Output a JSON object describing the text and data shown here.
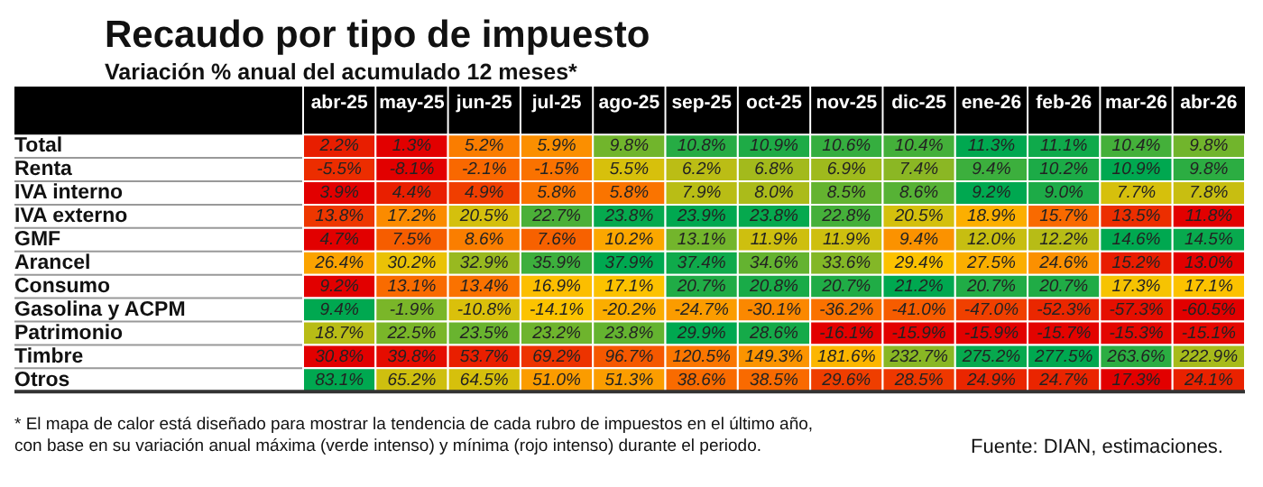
{
  "chart_data": {
    "type": "heatmap",
    "title": "Recaudo por tipo de impuesto",
    "subtitle": "Variación % anual del acumulado 12 meses*",
    "categories": [
      "abr-25",
      "may-25",
      "jun-25",
      "jul-25",
      "ago-25",
      "sep-25",
      "oct-25",
      "nov-25",
      "dic-25",
      "ene-26",
      "feb-26",
      "mar-26",
      "abr-26"
    ],
    "y_categories": [
      "Total",
      "Renta",
      "IVA interno",
      "IVA externo",
      "GMF",
      "Arancel",
      "Consumo",
      "Gasolina y ACPM",
      "Patrimonio",
      "Timbre",
      "Otros"
    ],
    "cells": [
      [
        2.2,
        1.3,
        5.2,
        5.9,
        9.8,
        10.8,
        10.9,
        10.6,
        10.4,
        11.3,
        11.1,
        10.4,
        9.8
      ],
      [
        -5.5,
        -8.1,
        -2.1,
        -1.5,
        5.5,
        6.2,
        6.8,
        6.9,
        7.4,
        9.4,
        10.2,
        10.9,
        9.8
      ],
      [
        3.9,
        4.4,
        4.9,
        5.8,
        5.8,
        7.9,
        8.0,
        8.5,
        8.6,
        9.2,
        9.0,
        7.7,
        7.8
      ],
      [
        13.8,
        17.2,
        20.5,
        22.7,
        23.8,
        23.9,
        23.8,
        22.8,
        20.5,
        18.9,
        15.7,
        13.5,
        11.8
      ],
      [
        4.7,
        7.5,
        8.6,
        7.6,
        10.2,
        13.1,
        11.9,
        11.9,
        9.4,
        12.0,
        12.2,
        14.6,
        14.5
      ],
      [
        26.4,
        30.2,
        32.9,
        35.9,
        37.9,
        37.4,
        34.6,
        33.6,
        29.4,
        27.5,
        24.6,
        15.2,
        13.0
      ],
      [
        9.2,
        13.1,
        13.4,
        16.9,
        17.1,
        20.7,
        20.8,
        20.7,
        21.2,
        20.7,
        20.7,
        17.3,
        17.1
      ],
      [
        9.4,
        -1.9,
        -10.8,
        -14.1,
        -20.2,
        -24.7,
        -30.1,
        -36.2,
        -41.0,
        -47.0,
        -52.3,
        -57.3,
        -60.5
      ],
      [
        18.7,
        22.5,
        23.5,
        23.2,
        23.8,
        29.9,
        28.6,
        -16.1,
        -15.9,
        -15.9,
        -15.7,
        -15.3,
        -15.1
      ],
      [
        30.8,
        39.8,
        53.7,
        69.2,
        96.7,
        120.5,
        149.3,
        181.6,
        232.7,
        275.2,
        277.5,
        263.6,
        222.9
      ],
      [
        83.1,
        65.2,
        64.5,
        51.0,
        51.3,
        38.6,
        38.5,
        29.6,
        28.5,
        24.9,
        24.7,
        17.3,
        24.1
      ]
    ],
    "cell_labels": [
      [
        "2.2%",
        "1.3%",
        "5.2%",
        "5.9%",
        "9.8%",
        "10.8%",
        "10.9%",
        "10.6%",
        "10.4%",
        "11.3%",
        "11.1%",
        "10.4%",
        "9.8%"
      ],
      [
        "-5.5%",
        "-8.1%",
        "-2.1%",
        "-1.5%",
        "5.5%",
        "6.2%",
        "6.8%",
        "6.9%",
        "7.4%",
        "9.4%",
        "10.2%",
        "10.9%",
        "9.8%"
      ],
      [
        "3.9%",
        "4.4%",
        "4.9%",
        "5.8%",
        "5.8%",
        "7.9%",
        "8.0%",
        "8.5%",
        "8.6%",
        "9.2%",
        "9.0%",
        "7.7%",
        "7.8%"
      ],
      [
        "13.8%",
        "17.2%",
        "20.5%",
        "22.7%",
        "23.8%",
        "23.9%",
        "23.8%",
        "22.8%",
        "20.5%",
        "18.9%",
        "15.7%",
        "13.5%",
        "11.8%"
      ],
      [
        "4.7%",
        "7.5%",
        "8.6%",
        "7.6%",
        "10.2%",
        "13.1%",
        "11.9%",
        "11.9%",
        "9.4%",
        "12.0%",
        "12.2%",
        "14.6%",
        "14.5%"
      ],
      [
        "26.4%",
        "30.2%",
        "32.9%",
        "35.9%",
        "37.9%",
        "37.4%",
        "34.6%",
        "33.6%",
        "29.4%",
        "27.5%",
        "24.6%",
        "15.2%",
        "13.0%"
      ],
      [
        "9.2%",
        "13.1%",
        "13.4%",
        "16.9%",
        "17.1%",
        "20.7%",
        "20.8%",
        "20.7%",
        "21.2%",
        "20.7%",
        "20.7%",
        "17.3%",
        "17.1%"
      ],
      [
        "9.4%",
        "-1.9%",
        "-10.8%",
        "-14.1%",
        "-20.2%",
        "-24.7%",
        "-30.1%",
        "-36.2%",
        "-41.0%",
        "-47.0%",
        "-52.3%",
        "-57.3%",
        "-60.5%"
      ],
      [
        "18.7%",
        "22.5%",
        "23.5%",
        "23.2%",
        "23.8%",
        "29.9%",
        "28.6%",
        "-16.1%",
        "-15.9%",
        "-15.9%",
        "-15.7%",
        "-15.3%",
        "-15.1%"
      ],
      [
        "30.8%",
        "39.8%",
        "53.7%",
        "69.2%",
        "96.7%",
        "120.5%",
        "149.3%",
        "181.6%",
        "232.7%",
        "275.2%",
        "277.5%",
        "263.6%",
        "222.9%"
      ],
      [
        "83.1%",
        "65.2%",
        "64.5%",
        "51.0%",
        "51.3%",
        "38.6%",
        "38.5%",
        "29.6%",
        "28.5%",
        "24.9%",
        "24.7%",
        "17.3%",
        "24.1%"
      ]
    ],
    "annotations": [
      "* El mapa de calor está diseñado para mostrar la tendencia de cada rubro de impuestos en el último año, con base en su variación anual máxima (verde intenso) y mínima (rojo intenso) durante el periodo.",
      "Fuente: DIAN, estimaciones."
    ]
  }
}
